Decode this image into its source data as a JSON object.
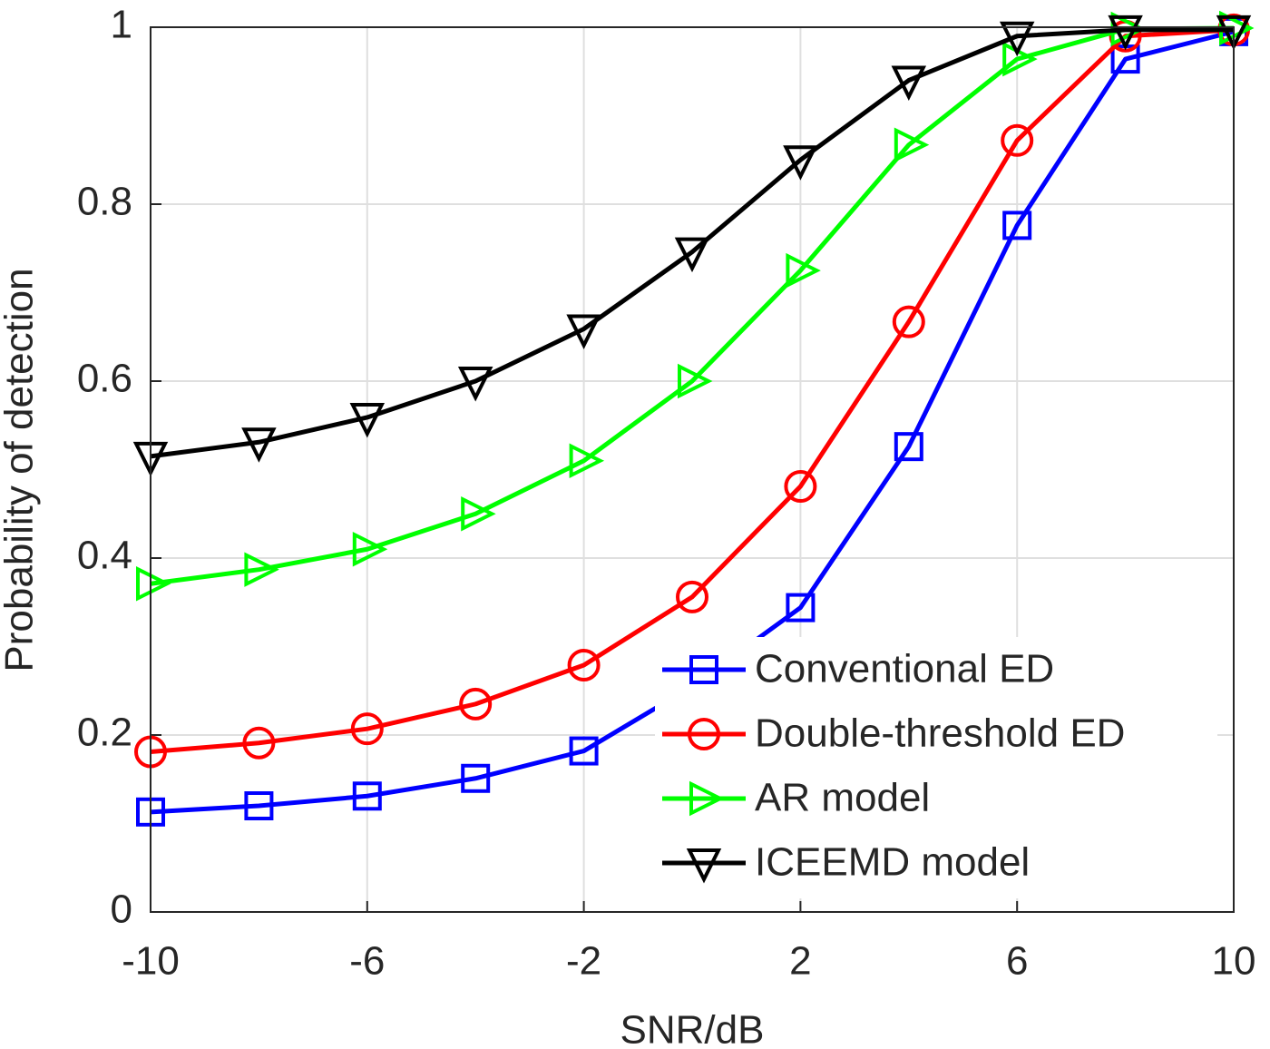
{
  "chart_data": {
    "type": "line",
    "xlabel": "SNR/dB",
    "ylabel": "Probability of detection",
    "x": [
      -10,
      -8,
      -6,
      -4,
      -2,
      0,
      2,
      4,
      6,
      8,
      10
    ],
    "series": [
      {
        "name": "Conventional ED",
        "color": "#0000ff",
        "marker": "square",
        "values": [
          0.113,
          0.12,
          0.131,
          0.151,
          0.182,
          0.255,
          0.344,
          0.526,
          0.776,
          0.964,
          0.995
        ]
      },
      {
        "name": "Double-threshold ED",
        "color": "#ff0000",
        "marker": "circle",
        "values": [
          0.181,
          0.191,
          0.207,
          0.235,
          0.279,
          0.356,
          0.481,
          0.667,
          0.872,
          0.99,
          0.997
        ]
      },
      {
        "name": "AR model",
        "color": "#00ff00",
        "marker": "triangle-right",
        "values": [
          0.371,
          0.387,
          0.41,
          0.45,
          0.51,
          0.6,
          0.725,
          0.867,
          0.964,
          0.998,
          0.999
        ]
      },
      {
        "name": "ICEEMD model",
        "color": "#000000",
        "marker": "triangle-down",
        "values": [
          0.515,
          0.531,
          0.559,
          0.6,
          0.659,
          0.746,
          0.85,
          0.94,
          0.99,
          0.997,
          0.997
        ]
      }
    ],
    "xlim": [
      -10,
      10
    ],
    "xticks": [
      -10,
      -6,
      -2,
      2,
      6,
      10
    ],
    "ylim": [
      0,
      1
    ],
    "yticks": [
      0,
      0.2,
      0.4,
      0.6,
      0.8,
      1
    ],
    "grid": true,
    "legend": "lower right"
  }
}
